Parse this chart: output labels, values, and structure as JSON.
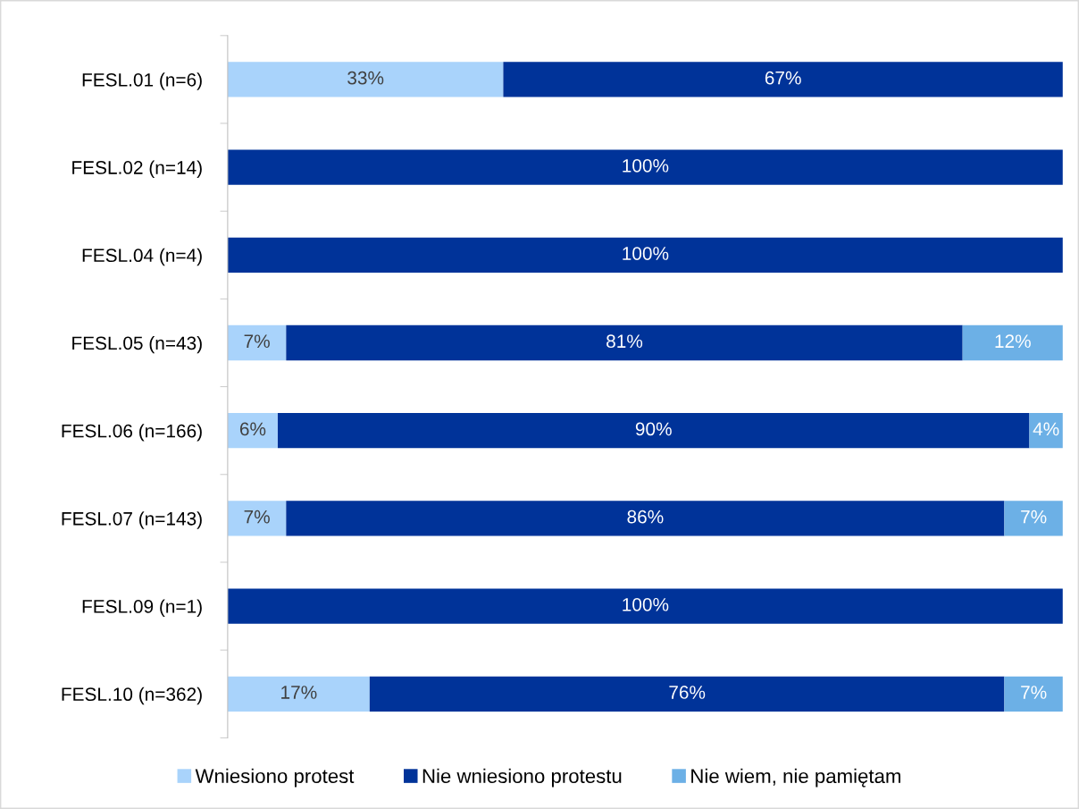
{
  "chart_data": {
    "type": "bar",
    "orientation": "horizontal",
    "stacked": true,
    "legend": "bottom",
    "categories": [
      "FESL.01 (n=6)",
      "FESL.02 (n=14)",
      "FESL.04 (n=4)",
      "FESL.05 (n=43)",
      "FESL.06 (n=166)",
      "FESL.07 (n=143)",
      "FESL.09 (n=1)",
      "FESL.10 (n=362)"
    ],
    "series": [
      {
        "name": "Wniesiono protest",
        "color": "#a9d3fb",
        "values": [
          33,
          null,
          null,
          7,
          6,
          7,
          null,
          17
        ],
        "value_labels": [
          "33%",
          null,
          null,
          "7%",
          "6%",
          "7%",
          null,
          "17%"
        ]
      },
      {
        "name": "Nie wniesiono protestu",
        "color": "#003399",
        "values": [
          67,
          100,
          100,
          81,
          90,
          86,
          100,
          76
        ],
        "value_labels": [
          "67%",
          "100%",
          "100%",
          "81%",
          "90%",
          "86%",
          "100%",
          "76%"
        ]
      },
      {
        "name": "Nie wiem, nie pamiętam",
        "color": "#6cb0e6",
        "values": [
          null,
          null,
          null,
          12,
          4,
          7,
          null,
          7
        ],
        "value_labels": [
          null,
          null,
          null,
          "12%",
          "4%",
          "7%",
          null,
          "7%"
        ]
      }
    ]
  }
}
